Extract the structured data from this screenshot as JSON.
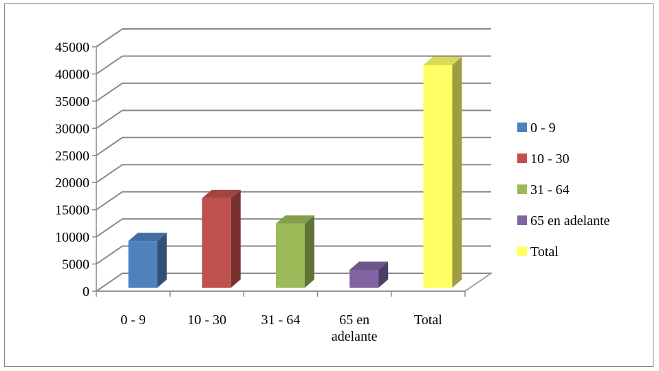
{
  "chart_data": {
    "type": "bar",
    "title": "",
    "xlabel": "",
    "ylabel": "",
    "categories": [
      "0 - 9",
      "10 - 30",
      "31 - 64",
      "65 en adelante",
      "Total"
    ],
    "category_label_lines": [
      [
        "0 - 9"
      ],
      [
        "10 - 30"
      ],
      [
        "31 - 64"
      ],
      [
        "65 en",
        "adelante"
      ],
      [
        "Total"
      ]
    ],
    "values": [
      8600,
      16500,
      11800,
      3300,
      41000
    ],
    "colors": [
      "#4F81BD",
      "#C0504D",
      "#9BBB59",
      "#8064A2",
      "#FFFF66"
    ],
    "ylim": [
      0,
      45000
    ],
    "yticks": [
      0,
      5000,
      10000,
      15000,
      20000,
      25000,
      30000,
      35000,
      40000,
      45000
    ],
    "grid": true,
    "three_d": true,
    "legend": {
      "placement": "right",
      "entries": [
        "0 - 9",
        "10 - 30",
        "31 - 64",
        "65 en adelante",
        "Total"
      ]
    }
  }
}
